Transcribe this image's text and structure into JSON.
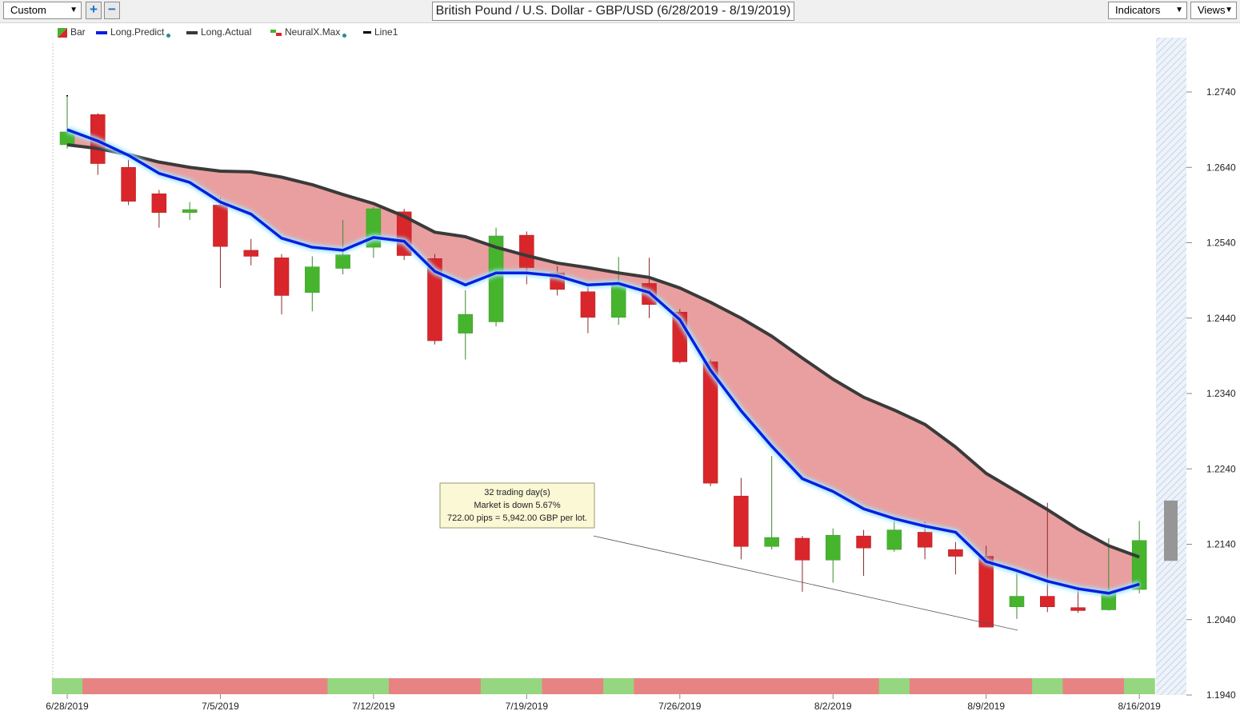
{
  "toolbar": {
    "preset": "Custom",
    "add_label": "+",
    "remove_label": "−",
    "title": "British Pound / U.S. Dollar - GBP/USD (6/28/2019 - 8/19/2019)",
    "indicators_label": "Indicators",
    "views_label": "Views"
  },
  "legend": [
    {
      "label": "Bar",
      "icon": "bar-icon"
    },
    {
      "label": "Long.Predict",
      "icon": "blue-line-icon",
      "color": "#0a1ee0"
    },
    {
      "label": "Long.Actual",
      "icon": "dark-line-icon",
      "color": "#3a3a3a"
    },
    {
      "label": "NeuralX.Max",
      "icon": "bar-icon"
    },
    {
      "label": "Line1",
      "icon": "black-line-icon",
      "color": "#000000"
    }
  ],
  "colors": {
    "up": "#47b42e",
    "down": "#d9262b",
    "predict": "#0a1ee0",
    "actual": "#3a3a3a",
    "fill": "#e89a9a",
    "band_up": "#96d680",
    "band_down": "#e88383"
  },
  "annotation": {
    "lines": [
      "32 trading day(s)",
      "Market is down 5.67%",
      "722.00 pips = 5,942.00 GBP per lot."
    ]
  },
  "chart_data": {
    "type": "candlestick",
    "title": "British Pound / U.S. Dollar - GBP/USD (6/28/2019 - 8/19/2019)",
    "ylim": [
      1.194,
      1.28
    ],
    "y_ticks": [
      "1.2740",
      "1.2640",
      "1.2540",
      "1.2440",
      "1.2340",
      "1.2240",
      "1.2140",
      "1.2040",
      "1.1940"
    ],
    "x_tick_labels": [
      {
        "index": 0,
        "label": "6/28/2019"
      },
      {
        "index": 5,
        "label": "7/5/2019"
      },
      {
        "index": 10,
        "label": "7/12/2019"
      },
      {
        "index": 15,
        "label": "7/19/2019"
      },
      {
        "index": 20,
        "label": "7/26/2019"
      },
      {
        "index": 25,
        "label": "8/2/2019"
      },
      {
        "index": 30,
        "label": "8/9/2019"
      },
      {
        "index": 35,
        "label": "8/16/2019"
      }
    ],
    "series": [
      {
        "name": "Bar",
        "ohlc": [
          [
            1.267,
            1.2735,
            1.2665,
            1.2687
          ],
          [
            1.271,
            1.2712,
            1.263,
            1.2645
          ],
          [
            1.264,
            1.265,
            1.259,
            1.2595
          ],
          [
            1.2605,
            1.261,
            1.256,
            1.258
          ],
          [
            1.258,
            1.2594,
            1.257,
            1.2584
          ],
          [
            1.259,
            1.26,
            1.248,
            1.2535
          ],
          [
            1.253,
            1.2545,
            1.251,
            1.2522
          ],
          [
            1.252,
            1.2525,
            1.2445,
            1.247
          ],
          [
            1.2474,
            1.2522,
            1.2449,
            1.2508
          ],
          [
            1.2506,
            1.257,
            1.2498,
            1.2524
          ],
          [
            1.2534,
            1.2587,
            1.252,
            1.2585
          ],
          [
            1.2581,
            1.2585,
            1.2517,
            1.2523
          ],
          [
            1.2519,
            1.2525,
            1.2405,
            1.241
          ],
          [
            1.242,
            1.2477,
            1.2385,
            1.2445
          ],
          [
            1.2435,
            1.256,
            1.2429,
            1.2549
          ],
          [
            1.255,
            1.2555,
            1.2485,
            1.2507
          ],
          [
            1.25,
            1.2509,
            1.247,
            1.2478
          ],
          [
            1.2475,
            1.2482,
            1.242,
            1.2441
          ],
          [
            1.2441,
            1.2521,
            1.2431,
            1.2486
          ],
          [
            1.2486,
            1.252,
            1.244,
            1.2458
          ],
          [
            1.2448,
            1.2452,
            1.238,
            1.2382
          ],
          [
            1.2382,
            1.2385,
            1.2217,
            1.2221
          ],
          [
            1.2204,
            1.2228,
            1.212,
            1.2137
          ],
          [
            1.2137,
            1.2257,
            1.2133,
            1.2149
          ],
          [
            1.2148,
            1.2151,
            1.2077,
            1.2119
          ],
          [
            1.2119,
            1.2161,
            1.2089,
            1.2152
          ],
          [
            1.2151,
            1.2159,
            1.2098,
            1.2135
          ],
          [
            1.2133,
            1.2175,
            1.213,
            1.2159
          ],
          [
            1.2156,
            1.217,
            1.212,
            1.2136
          ],
          [
            1.2133,
            1.2143,
            1.21,
            1.2124
          ],
          [
            1.2124,
            1.2138,
            1.203,
            1.203
          ],
          [
            1.2057,
            1.2102,
            1.2041,
            1.2071
          ],
          [
            1.2071,
            1.2195,
            1.205,
            1.2057
          ],
          [
            1.2056,
            1.2084,
            1.2049,
            1.2052
          ],
          [
            1.2053,
            1.2148,
            1.2052,
            1.2078
          ],
          [
            1.208,
            1.2171,
            1.2075,
            1.2145
          ]
        ]
      },
      {
        "name": "Long.Predict",
        "values": [
          1.269,
          1.2675,
          1.2656,
          1.2632,
          1.262,
          1.2594,
          1.2578,
          1.2546,
          1.2534,
          1.253,
          1.2547,
          1.2542,
          1.2502,
          1.2484,
          1.25,
          1.25,
          1.2496,
          1.2484,
          1.2486,
          1.2474,
          1.2438,
          1.2371,
          1.2317,
          1.227,
          1.2227,
          1.221,
          1.2187,
          1.2174,
          1.2164,
          1.2156,
          1.2117,
          1.2105,
          1.2091,
          1.2081,
          1.2075,
          1.2087
        ]
      },
      {
        "name": "Long.Actual",
        "values": [
          1.267,
          1.2665,
          1.2657,
          1.2647,
          1.264,
          1.2635,
          1.2634,
          1.2627,
          1.2617,
          1.2604,
          1.2592,
          1.2575,
          1.2554,
          1.2548,
          1.2534,
          1.2523,
          1.2513,
          1.2507,
          1.25,
          1.2494,
          1.248,
          1.2461,
          1.244,
          1.2416,
          1.2387,
          1.2359,
          1.2335,
          1.2318,
          1.2299,
          1.2269,
          1.2234,
          1.221,
          1.2186,
          1.216,
          1.2138,
          1.2123
        ]
      },
      {
        "name": "NeuralX.Max",
        "values": [
          "up",
          "down",
          "down",
          "down",
          "down",
          "down",
          "down",
          "down",
          "down",
          "up",
          "up",
          "down",
          "down",
          "down",
          "up",
          "up",
          "down",
          "down",
          "up",
          "down",
          "down",
          "down",
          "down",
          "down",
          "down",
          "down",
          "down",
          "up",
          "down",
          "down",
          "down",
          "down",
          "up",
          "down",
          "down",
          "up"
        ]
      },
      {
        "name": "Line1",
        "points": [
          [
            1.2151,
            "anchor"
          ],
          [
            1.2026,
            "end"
          ]
        ]
      }
    ],
    "projection_range": [
      1.2118,
      1.2198
    ]
  }
}
